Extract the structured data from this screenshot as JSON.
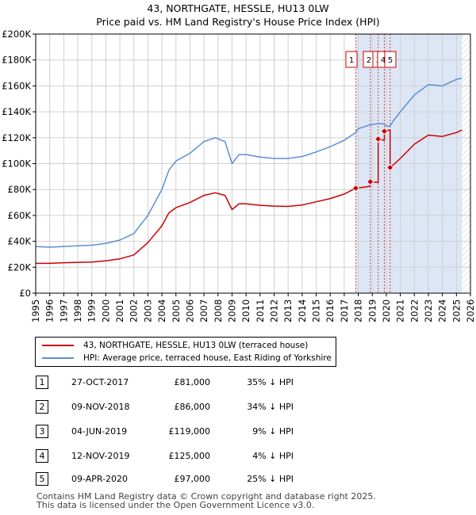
{
  "title_line1": "43, NORTHGATE, HESSLE, HU13 0LW",
  "title_line2": "Price paid vs. HM Land Registry's House Price Index (HPI)",
  "legend": {
    "property_label": "43, NORTHGATE, HESSLE, HU13 0LW (terraced house)",
    "hpi_label": "HPI: Average price, terraced house, East Riding of Yorkshire"
  },
  "transactions": [
    {
      "num": "1",
      "date": "27-OCT-2017",
      "price": "£81,000",
      "hpi": "35% ↓ HPI"
    },
    {
      "num": "2",
      "date": "09-NOV-2018",
      "price": "£86,000",
      "hpi": "34% ↓ HPI"
    },
    {
      "num": "3",
      "date": "04-JUN-2019",
      "price": "£119,000",
      "hpi": "9% ↓ HPI"
    },
    {
      "num": "4",
      "date": "12-NOV-2019",
      "price": "£125,000",
      "hpi": "4% ↓ HPI"
    },
    {
      "num": "5",
      "date": "09-APR-2020",
      "price": "£97,000",
      "hpi": "25% ↓ HPI"
    }
  ],
  "footer_line1": "Contains HM Land Registry data © Crown copyright and database right 2025.",
  "footer_line2": "This data is licensed under the Open Government Licence v3.0.",
  "colors": {
    "property": "#cc0000",
    "hpi": "#5b8fd0",
    "shade": "#dce6f5",
    "vline": "#cc0000",
    "grid": "#d0d0d0"
  },
  "chart_data": {
    "type": "line",
    "title": "43, NORTHGATE, HESSLE, HU13 0LW — Price paid vs. HM Land Registry's House Price Index (HPI)",
    "xlim": [
      1995,
      2026
    ],
    "ylim": [
      0,
      200000
    ],
    "x_ticks": [
      "1995",
      "1996",
      "1997",
      "1998",
      "1999",
      "2000",
      "2001",
      "2002",
      "2003",
      "2004",
      "2005",
      "2006",
      "2007",
      "2008",
      "2009",
      "2010",
      "2011",
      "2012",
      "2013",
      "2014",
      "2015",
      "2016",
      "2017",
      "2018",
      "2019",
      "2020",
      "2021",
      "2022",
      "2023",
      "2024",
      "2025",
      "2026"
    ],
    "y_ticks": [
      {
        "value": 0,
        "label": "£0"
      },
      {
        "value": 20000,
        "label": "£20K"
      },
      {
        "value": 40000,
        "label": "£40K"
      },
      {
        "value": 60000,
        "label": "£60K"
      },
      {
        "value": 80000,
        "label": "£80K"
      },
      {
        "value": 100000,
        "label": "£100K"
      },
      {
        "value": 120000,
        "label": "£120K"
      },
      {
        "value": 140000,
        "label": "£140K"
      },
      {
        "value": 160000,
        "label": "£160K"
      },
      {
        "value": 180000,
        "label": "£180K"
      },
      {
        "value": 200000,
        "label": "£200K"
      }
    ],
    "shaded_region": [
      2017.82,
      2025.4
    ],
    "future_hatch_from": 2025.4,
    "series": [
      {
        "name": "HPI: Average price, terraced house, East Riding of Yorkshire",
        "points": [
          [
            1995,
            36000
          ],
          [
            1996,
            35500
          ],
          [
            1997,
            36000
          ],
          [
            1998,
            36500
          ],
          [
            1999,
            37000
          ],
          [
            2000,
            38500
          ],
          [
            2001,
            41000
          ],
          [
            2002,
            46000
          ],
          [
            2003,
            60000
          ],
          [
            2004,
            80000
          ],
          [
            2004.5,
            95000
          ],
          [
            2005,
            102000
          ],
          [
            2006,
            108000
          ],
          [
            2007,
            117000
          ],
          [
            2007.8,
            120000
          ],
          [
            2008.5,
            117000
          ],
          [
            2009,
            100000
          ],
          [
            2009.5,
            107000
          ],
          [
            2010,
            107000
          ],
          [
            2011,
            105000
          ],
          [
            2012,
            104000
          ],
          [
            2013,
            104000
          ],
          [
            2014,
            105500
          ],
          [
            2015,
            109000
          ],
          [
            2016,
            113000
          ],
          [
            2017,
            118000
          ],
          [
            2017.82,
            124000
          ],
          [
            2018,
            127000
          ],
          [
            2018.85,
            130000
          ],
          [
            2019,
            130000
          ],
          [
            2019.42,
            131000
          ],
          [
            2019.86,
            130500
          ],
          [
            2020,
            129000
          ],
          [
            2020.27,
            129000
          ],
          [
            2020.5,
            133000
          ],
          [
            2021,
            140000
          ],
          [
            2022,
            153000
          ],
          [
            2023,
            161000
          ],
          [
            2024,
            160000
          ],
          [
            2025,
            165000
          ],
          [
            2025.4,
            166000
          ]
        ]
      },
      {
        "name": "43, NORTHGATE, HESSLE, HU13 0LW (terraced house)",
        "points": [
          [
            1995,
            23000
          ],
          [
            1996,
            23000
          ],
          [
            1997,
            23500
          ],
          [
            1998,
            23800
          ],
          [
            1999,
            24000
          ],
          [
            2000,
            25000
          ],
          [
            2001,
            26500
          ],
          [
            2002,
            29500
          ],
          [
            2003,
            39000
          ],
          [
            2004,
            52000
          ],
          [
            2004.5,
            62000
          ],
          [
            2005,
            66000
          ],
          [
            2006,
            70000
          ],
          [
            2007,
            75500
          ],
          [
            2007.8,
            77500
          ],
          [
            2008.5,
            75500
          ],
          [
            2009,
            64500
          ],
          [
            2009.5,
            69000
          ],
          [
            2010,
            69000
          ],
          [
            2011,
            67800
          ],
          [
            2012,
            67200
          ],
          [
            2013,
            67000
          ],
          [
            2014,
            68000
          ],
          [
            2015,
            70500
          ],
          [
            2016,
            73000
          ],
          [
            2017,
            76500
          ],
          [
            2017.82,
            81000
          ],
          [
            2018.85,
            82500
          ],
          [
            2018.85,
            86000
          ],
          [
            2019.42,
            85500
          ],
          [
            2019.42,
            119000
          ],
          [
            2019.86,
            118000
          ],
          [
            2019.86,
            125000
          ],
          [
            2020.27,
            126000
          ],
          [
            2020.27,
            97000
          ],
          [
            2020.5,
            99000
          ],
          [
            2021,
            104000
          ],
          [
            2022,
            115000
          ],
          [
            2023,
            122000
          ],
          [
            2024,
            121000
          ],
          [
            2025,
            124000
          ],
          [
            2025.4,
            126000
          ]
        ]
      }
    ],
    "sale_points": [
      {
        "num": "1",
        "date": 2017.82,
        "price": 81000
      },
      {
        "num": "2",
        "date": 2018.86,
        "price": 86000
      },
      {
        "num": "3",
        "date": 2019.42,
        "price": 119000
      },
      {
        "num": "4",
        "date": 2019.86,
        "price": 125000
      },
      {
        "num": "5",
        "date": 2020.27,
        "price": 97000
      }
    ]
  }
}
